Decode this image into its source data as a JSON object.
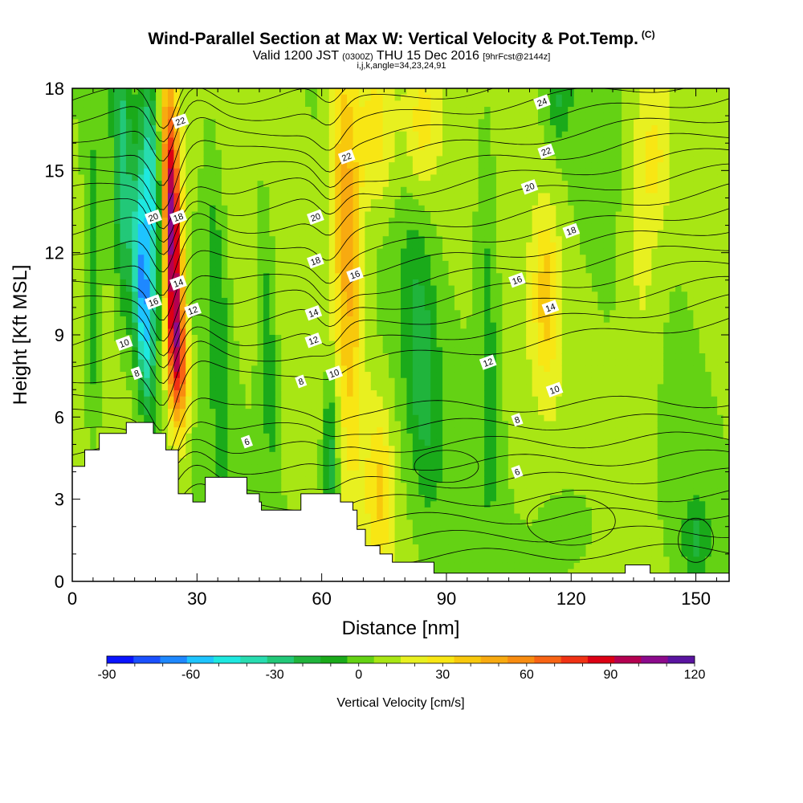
{
  "chart_data": {
    "type": "heatmap",
    "title": "Wind-Parallel Section at Max W: Vertical Velocity & Pot.Temp.",
    "title_mark": "(C)",
    "subtitle_main": "Valid 1200 JST",
    "subtitle_utc": "(0300Z)",
    "subtitle_date": "THU 15 Dec 2016",
    "subtitle_fcst": "[9hrFcst@2144z]",
    "subsubtitle": "i,j,k,angle=34,23,24,91",
    "xlabel": "Distance [nm]",
    "ylabel": "Height [Kft MSL]",
    "xlim": [
      0,
      158
    ],
    "ylim": [
      0,
      18
    ],
    "xticks": [
      "0",
      "30",
      "60",
      "90",
      "120",
      "150"
    ],
    "yticks": [
      "0",
      "3",
      "6",
      "9",
      "12",
      "15",
      "18"
    ],
    "colorbar": {
      "label": "Vertical Velocity [cm/s]",
      "min": -90,
      "max": 120,
      "step": 10,
      "tick_labels": [
        "-90",
        "-60",
        "-30",
        "0",
        "30",
        "60",
        "90",
        "120"
      ],
      "colors": [
        "#0a14ff",
        "#1a50ff",
        "#1e88ff",
        "#1ec4ff",
        "#1ee8e0",
        "#28dcb0",
        "#22c878",
        "#20b43c",
        "#1aaa1a",
        "#64d214",
        "#a8e614",
        "#e8f020",
        "#f8e614",
        "#f8c80c",
        "#f8aa10",
        "#f88c10",
        "#f86414",
        "#f03214",
        "#dc0014",
        "#b40050",
        "#8c0a8c",
        "#5a14a0"
      ]
    },
    "terrain_profile": [
      {
        "x": 0,
        "y": 4.2
      },
      {
        "x": 3,
        "y": 4.8
      },
      {
        "x": 6.5,
        "y": 5.4
      },
      {
        "x": 13,
        "y": 5.8
      },
      {
        "x": 19.5,
        "y": 5.4
      },
      {
        "x": 22.5,
        "y": 4.8
      },
      {
        "x": 25.5,
        "y": 3.2
      },
      {
        "x": 29,
        "y": 2.9
      },
      {
        "x": 32,
        "y": 3.8
      },
      {
        "x": 42,
        "y": 3.2
      },
      {
        "x": 45,
        "y": 2.9
      },
      {
        "x": 45.5,
        "y": 2.6
      },
      {
        "x": 55,
        "y": 3.2
      },
      {
        "x": 64.5,
        "y": 2.9
      },
      {
        "x": 67.5,
        "y": 2.6
      },
      {
        "x": 68.5,
        "y": 1.9
      },
      {
        "x": 70.5,
        "y": 1.3
      },
      {
        "x": 74,
        "y": 1.0
      },
      {
        "x": 77,
        "y": 0.7
      },
      {
        "x": 80,
        "y": 0.7
      },
      {
        "x": 83,
        "y": 0.7
      },
      {
        "x": 87,
        "y": 0.3
      },
      {
        "x": 132,
        "y": 0.3
      },
      {
        "x": 133,
        "y": 0.6
      },
      {
        "x": 139,
        "y": 0.3
      },
      {
        "x": 158,
        "y": 0.3
      }
    ],
    "velocity_features": [
      {
        "x": 24,
        "y": 13,
        "sx": 2.2,
        "sy": 5,
        "tilt": 0.15,
        "amp": 110
      },
      {
        "x": 25.5,
        "y": 8,
        "sx": 2.5,
        "sy": 2.5,
        "tilt": 0.2,
        "amp": 60
      },
      {
        "x": 17,
        "y": 10.5,
        "sx": 2.3,
        "sy": 4,
        "tilt": 0.25,
        "amp": -70
      },
      {
        "x": 19,
        "y": 14.5,
        "sx": 2.3,
        "sy": 4,
        "tilt": 0.2,
        "amp": -45
      },
      {
        "x": 12,
        "y": 15,
        "sx": 2,
        "sy": 5,
        "tilt": 0.1,
        "amp": -35
      },
      {
        "x": 66,
        "y": 13,
        "sx": 3.5,
        "sy": 8,
        "tilt": 0.15,
        "amp": 45
      },
      {
        "x": 73,
        "y": 16.5,
        "sx": 5,
        "sy": 3,
        "tilt": 0,
        "amp": 28
      },
      {
        "x": 84,
        "y": 16.5,
        "sx": 4,
        "sy": 2.5,
        "tilt": 0,
        "amp": 22
      },
      {
        "x": 74,
        "y": 3.5,
        "sx": 3,
        "sy": 3,
        "tilt": 0,
        "amp": 28
      },
      {
        "x": 84,
        "y": 8,
        "sx": 4,
        "sy": 5,
        "tilt": 0.3,
        "amp": -25
      },
      {
        "x": 62,
        "y": 4.5,
        "sx": 2,
        "sy": 3,
        "tilt": 0,
        "amp": -35
      },
      {
        "x": 47,
        "y": 9,
        "sx": 2.5,
        "sy": 6,
        "tilt": 0.2,
        "amp": -20
      },
      {
        "x": 35,
        "y": 10,
        "sx": 2.5,
        "sy": 7,
        "tilt": 0.25,
        "amp": -18
      },
      {
        "x": 100,
        "y": 10,
        "sx": 3,
        "sy": 8,
        "tilt": 0.1,
        "amp": -18
      },
      {
        "x": 114,
        "y": 10.5,
        "sx": 3,
        "sy": 3,
        "tilt": 0,
        "amp": 30
      },
      {
        "x": 137,
        "y": 11.5,
        "sx": 5,
        "sy": 6,
        "tilt": 0,
        "amp": 15
      },
      {
        "x": 140,
        "y": 15.5,
        "sx": 4,
        "sy": 2.5,
        "tilt": 0,
        "amp": 16
      },
      {
        "x": 117,
        "y": 17.5,
        "sx": 3,
        "sy": 1.5,
        "tilt": 0,
        "amp": -18
      },
      {
        "x": 150,
        "y": 1.5,
        "sx": 3,
        "sy": 1.5,
        "tilt": 0,
        "amp": -20
      },
      {
        "x": 120,
        "y": 2,
        "sx": 8,
        "sy": 2,
        "tilt": 0,
        "amp": -12
      },
      {
        "x": 5,
        "y": 10,
        "sx": 2,
        "sy": 6,
        "tilt": 0,
        "amp": -22
      }
    ],
    "contour_labels": [
      {
        "text": "22",
        "x": 26,
        "y": 16.8
      },
      {
        "text": "20",
        "x": 19.5,
        "y": 13.3
      },
      {
        "text": "18",
        "x": 25.5,
        "y": 13.3
      },
      {
        "text": "16",
        "x": 19.5,
        "y": 10.2
      },
      {
        "text": "14",
        "x": 25.5,
        "y": 10.9
      },
      {
        "text": "12",
        "x": 29,
        "y": 9.9
      },
      {
        "text": "10",
        "x": 12.5,
        "y": 8.7
      },
      {
        "text": "8",
        "x": 15.5,
        "y": 7.6
      },
      {
        "text": "6",
        "x": 42,
        "y": 5.1
      },
      {
        "text": "8",
        "x": 55,
        "y": 7.3
      },
      {
        "text": "10",
        "x": 63,
        "y": 7.6
      },
      {
        "text": "12",
        "x": 58,
        "y": 8.8
      },
      {
        "text": "14",
        "x": 58,
        "y": 9.8
      },
      {
        "text": "16",
        "x": 68,
        "y": 11.2
      },
      {
        "text": "18",
        "x": 58.5,
        "y": 11.7
      },
      {
        "text": "20",
        "x": 58.5,
        "y": 13.3
      },
      {
        "text": "22",
        "x": 66,
        "y": 15.5
      },
      {
        "text": "12",
        "x": 100,
        "y": 8.0
      },
      {
        "text": "10",
        "x": 116,
        "y": 7.0
      },
      {
        "text": "8",
        "x": 107,
        "y": 5.9
      },
      {
        "text": "6",
        "x": 107,
        "y": 4.0
      },
      {
        "text": "16",
        "x": 107,
        "y": 11.0
      },
      {
        "text": "14",
        "x": 115,
        "y": 10.0
      },
      {
        "text": "18",
        "x": 120,
        "y": 12.8
      },
      {
        "text": "20",
        "x": 110,
        "y": 14.4
      },
      {
        "text": "22",
        "x": 114,
        "y": 15.7
      },
      {
        "text": "24",
        "x": 113,
        "y": 17.5
      }
    ]
  }
}
